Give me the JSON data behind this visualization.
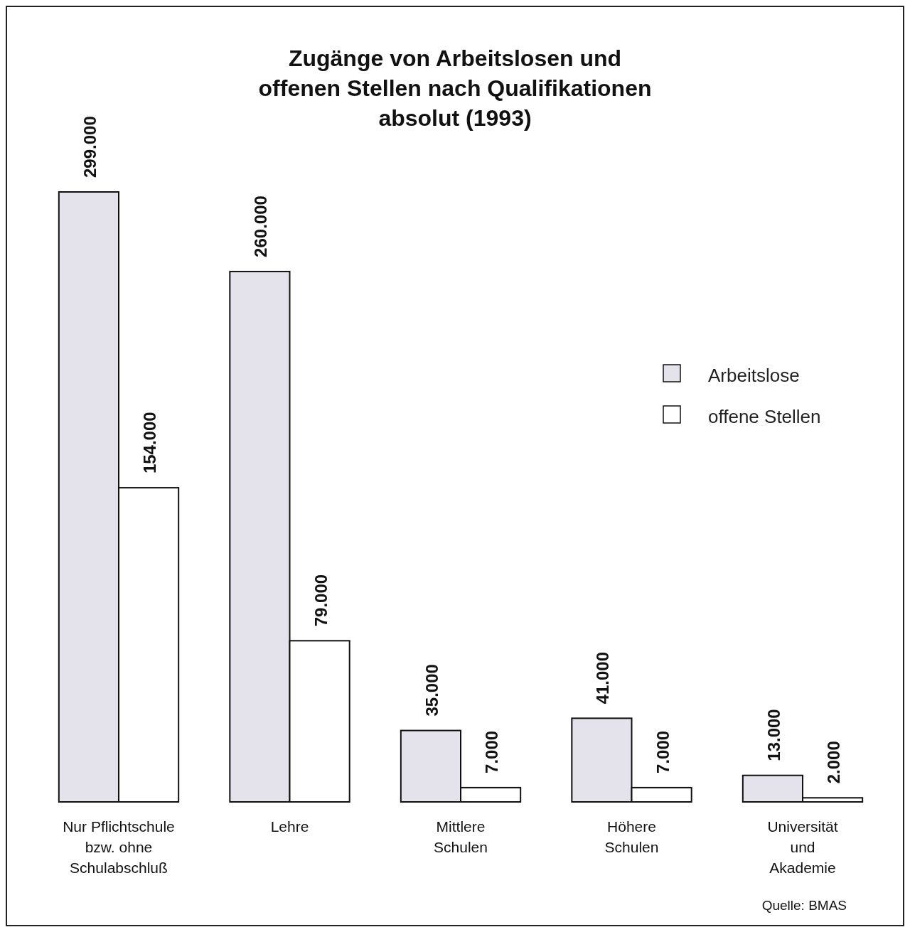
{
  "chart_data": {
    "type": "bar",
    "title": "Zugänge von Arbeitslosen und\noffenen Stellen nach Qualifikationen",
    "subtitle": "absolut (1993)",
    "categories": [
      "Nur Pflichtschule\nbzw. ohne\nSchulabschluß",
      "Lehre",
      "Mittlere\nSchulen",
      "Höhere\nSchulen",
      "Universität\nund\nAkademie"
    ],
    "series": [
      {
        "name": "Arbeitslose",
        "color": "#e4e2ea",
        "values": [
          299000,
          260000,
          35000,
          41000,
          13000
        ],
        "value_labels": [
          "299.000",
          "260.000",
          "35.000",
          "41.000",
          "13.000"
        ]
      },
      {
        "name": "offene Stellen",
        "color": "#ffffff",
        "values": [
          154000,
          79000,
          7000,
          7000,
          2000
        ],
        "value_labels": [
          "154.000",
          "79.000",
          "7.000",
          "7.000",
          "2.000"
        ]
      }
    ],
    "legend": "right",
    "annotations": [
      "Quelle: BMAS"
    ]
  }
}
